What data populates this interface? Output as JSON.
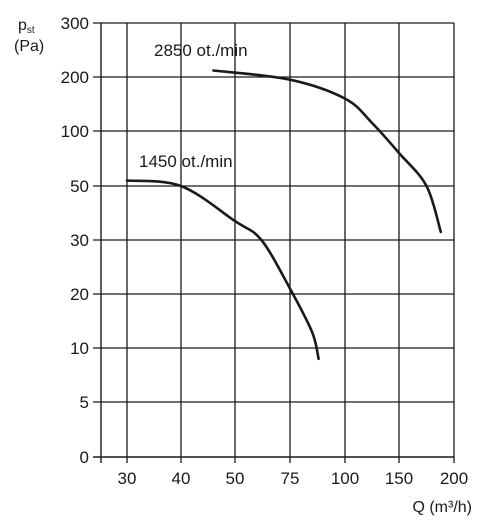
{
  "chart_data": {
    "type": "line",
    "title": "",
    "y_axis": {
      "symbol": "p",
      "subscript": "st",
      "unit": "(Pa)",
      "tick_labels": [
        "0",
        "5",
        "10",
        "20",
        "30",
        "50",
        "100",
        "200",
        "300"
      ],
      "scale": "nonlinear (equally spaced printed ticks)"
    },
    "x_axis": {
      "label": "Q (m³/h)",
      "tick_labels": [
        "30",
        "40",
        "50",
        "75",
        "100",
        "150",
        "200"
      ],
      "scale": "nonlinear (equally spaced printed ticks)"
    },
    "grid": true,
    "series": [
      {
        "name": "2850 ot./min",
        "color": "#1a1a1a",
        "points": [
          {
            "x": 46,
            "y": 212
          },
          {
            "x": 75,
            "y": 195
          },
          {
            "x": 100,
            "y": 160
          },
          {
            "x": 125,
            "y": 115
          },
          {
            "x": 150,
            "y": 80
          },
          {
            "x": 175,
            "y": 50
          },
          {
            "x": 188,
            "y": 33
          }
        ]
      },
      {
        "name": "1450 ot./min",
        "color": "#1a1a1a",
        "points": [
          {
            "x": 30,
            "y": 55
          },
          {
            "x": 40,
            "y": 50
          },
          {
            "x": 50,
            "y": 37
          },
          {
            "x": 62,
            "y": 30
          },
          {
            "x": 75,
            "y": 21
          },
          {
            "x": 85,
            "y": 13
          },
          {
            "x": 88,
            "y": 9
          }
        ]
      }
    ]
  }
}
